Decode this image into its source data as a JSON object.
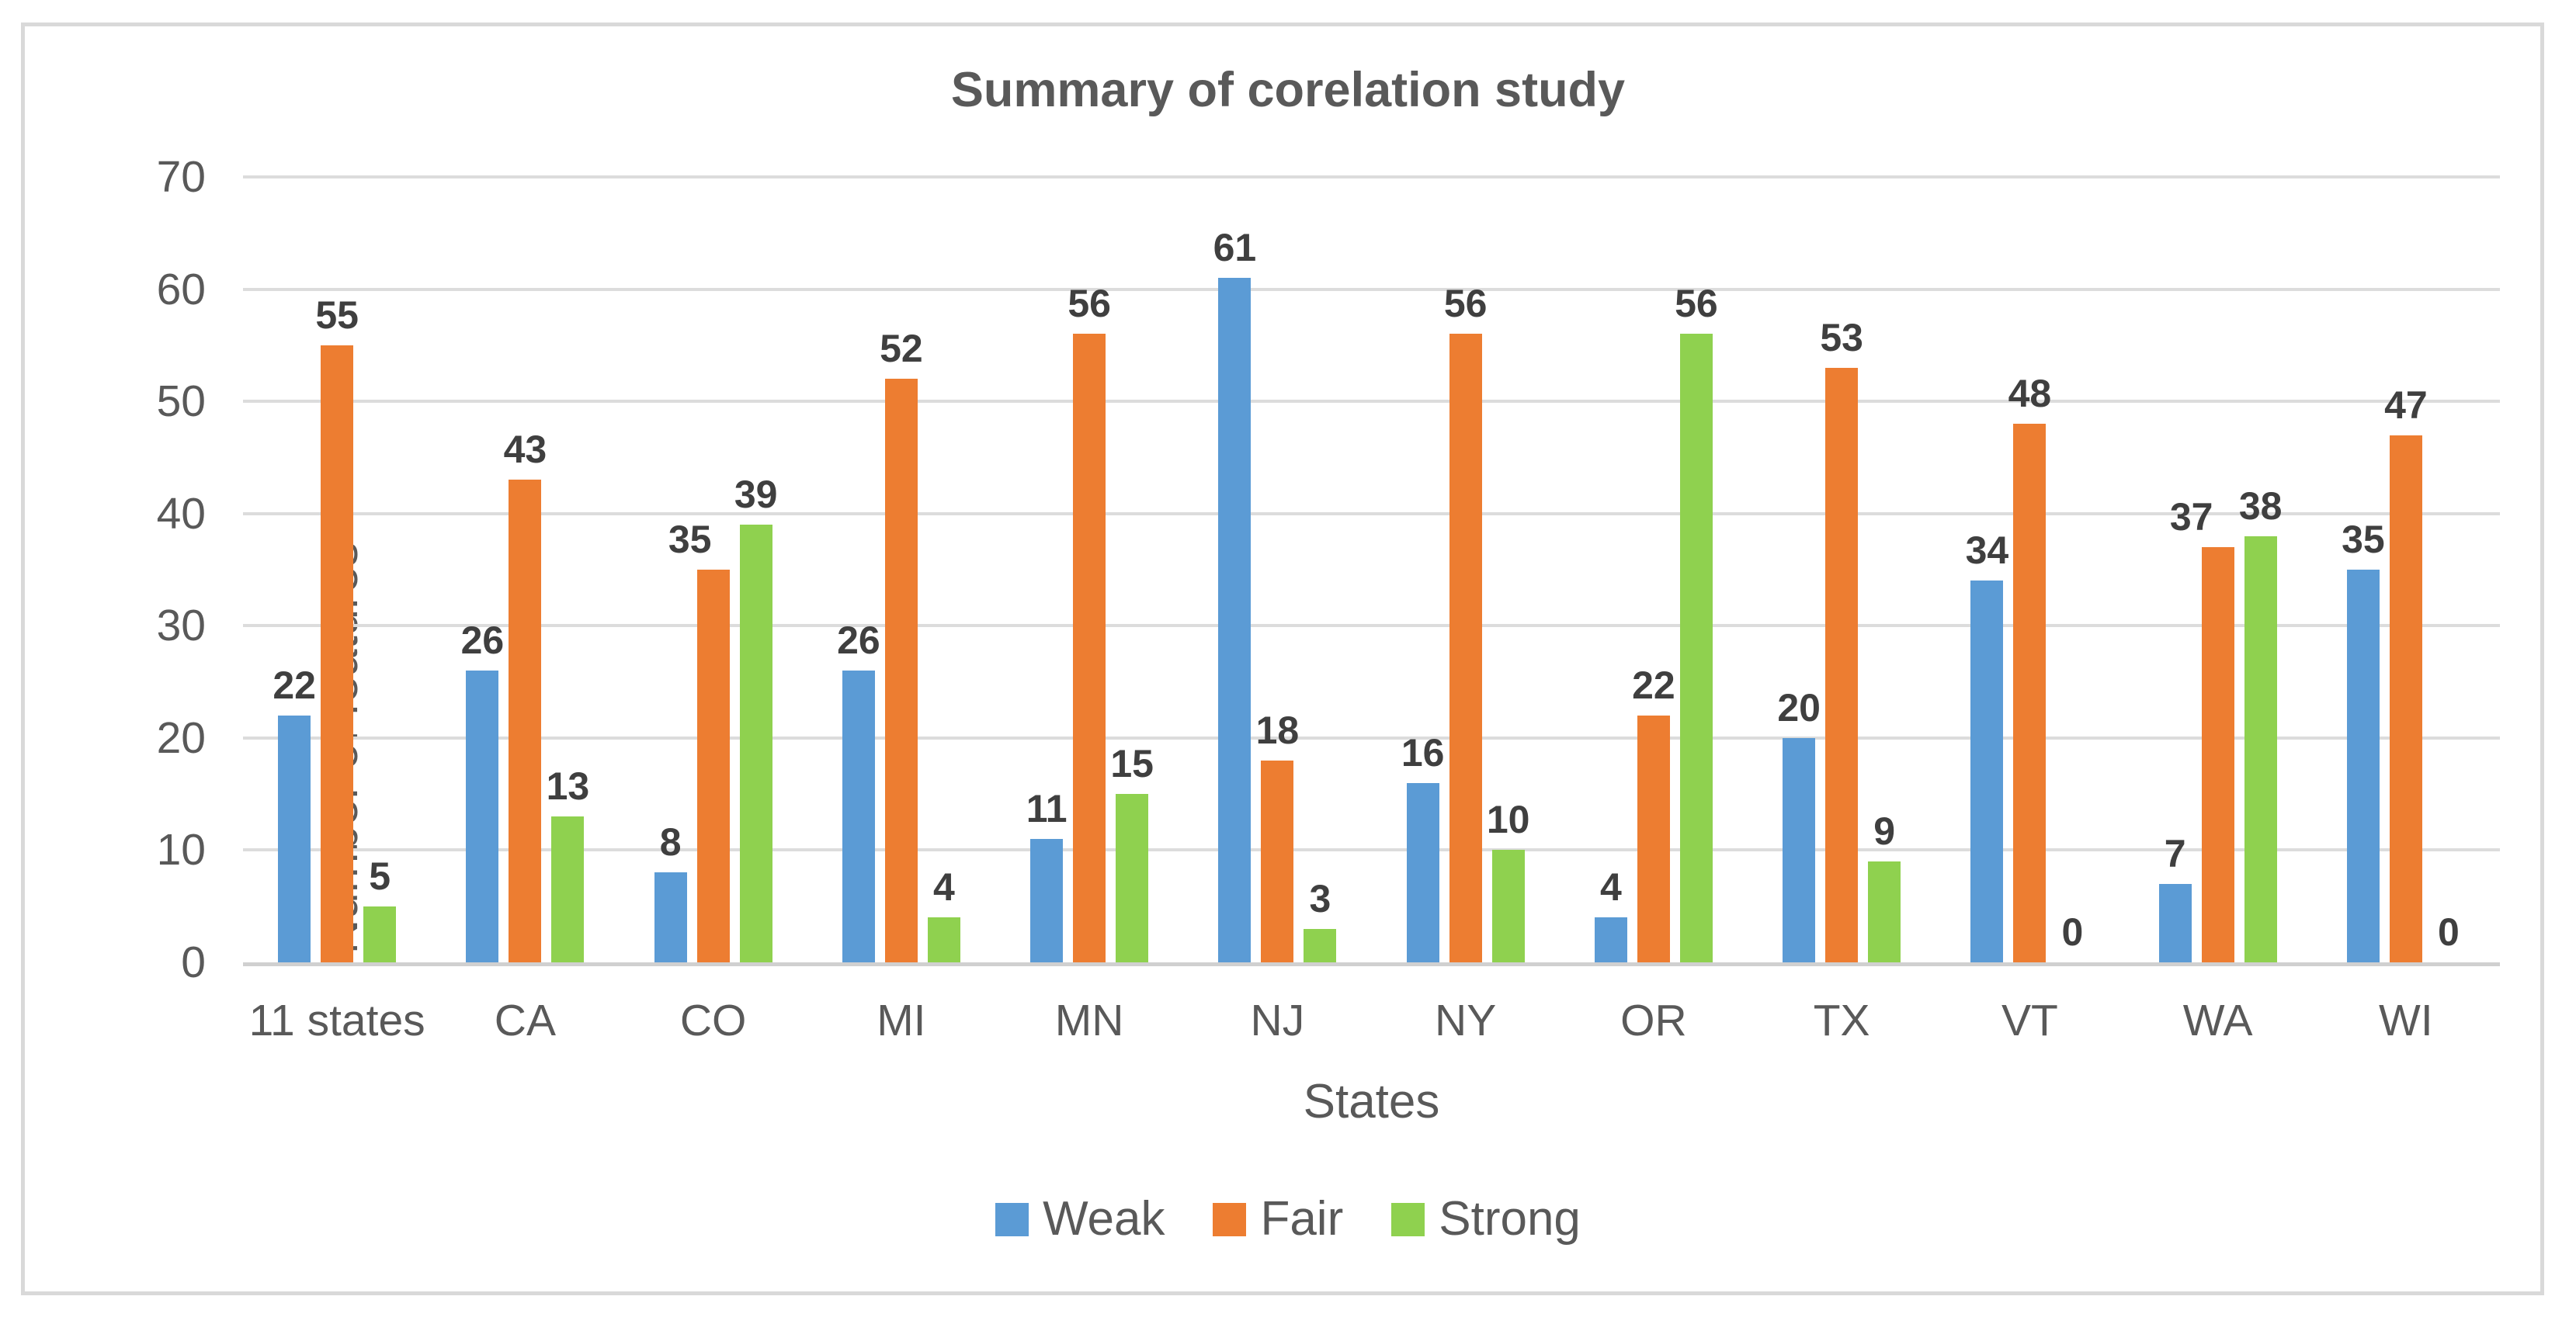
{
  "chart_data": {
    "type": "bar",
    "title": "Summary of corelation study",
    "xlabel": "States",
    "ylabel": "Number of features",
    "ylim": [
      0,
      70
    ],
    "yticks": [
      0,
      10,
      20,
      30,
      40,
      50,
      60,
      70
    ],
    "grid": true,
    "legend_position": "bottom",
    "data_labels": true,
    "categories": [
      "11 states",
      "CA",
      "CO",
      "MI",
      "MN",
      "NJ",
      "NY",
      "OR",
      "TX",
      "VT",
      "WA",
      "WI"
    ],
    "series": [
      {
        "name": "Weak",
        "color": "#5B9BD5",
        "values": [
          22,
          26,
          8,
          26,
          11,
          61,
          16,
          4,
          20,
          34,
          7,
          35
        ]
      },
      {
        "name": "Fair",
        "color": "#ED7D31",
        "values": [
          55,
          43,
          35,
          52,
          56,
          18,
          56,
          22,
          53,
          48,
          37,
          47
        ]
      },
      {
        "name": "Strong",
        "color": "#8FD14F",
        "values": [
          5,
          13,
          39,
          4,
          15,
          3,
          10,
          56,
          9,
          0,
          38,
          0
        ]
      }
    ],
    "label_offsets": [
      {
        "series": "Fair",
        "category": "CO",
        "dx": -30
      },
      {
        "series": "Fair",
        "category": "WA",
        "dx": -34
      }
    ]
  },
  "colors": {
    "text_gray": "#595959",
    "data_label": "#3F3F3F",
    "gridline": "#DCDCDC",
    "axis_line": "#D0D0D0",
    "frame_border": "#D9D9D9",
    "background": "#FFFFFF"
  }
}
